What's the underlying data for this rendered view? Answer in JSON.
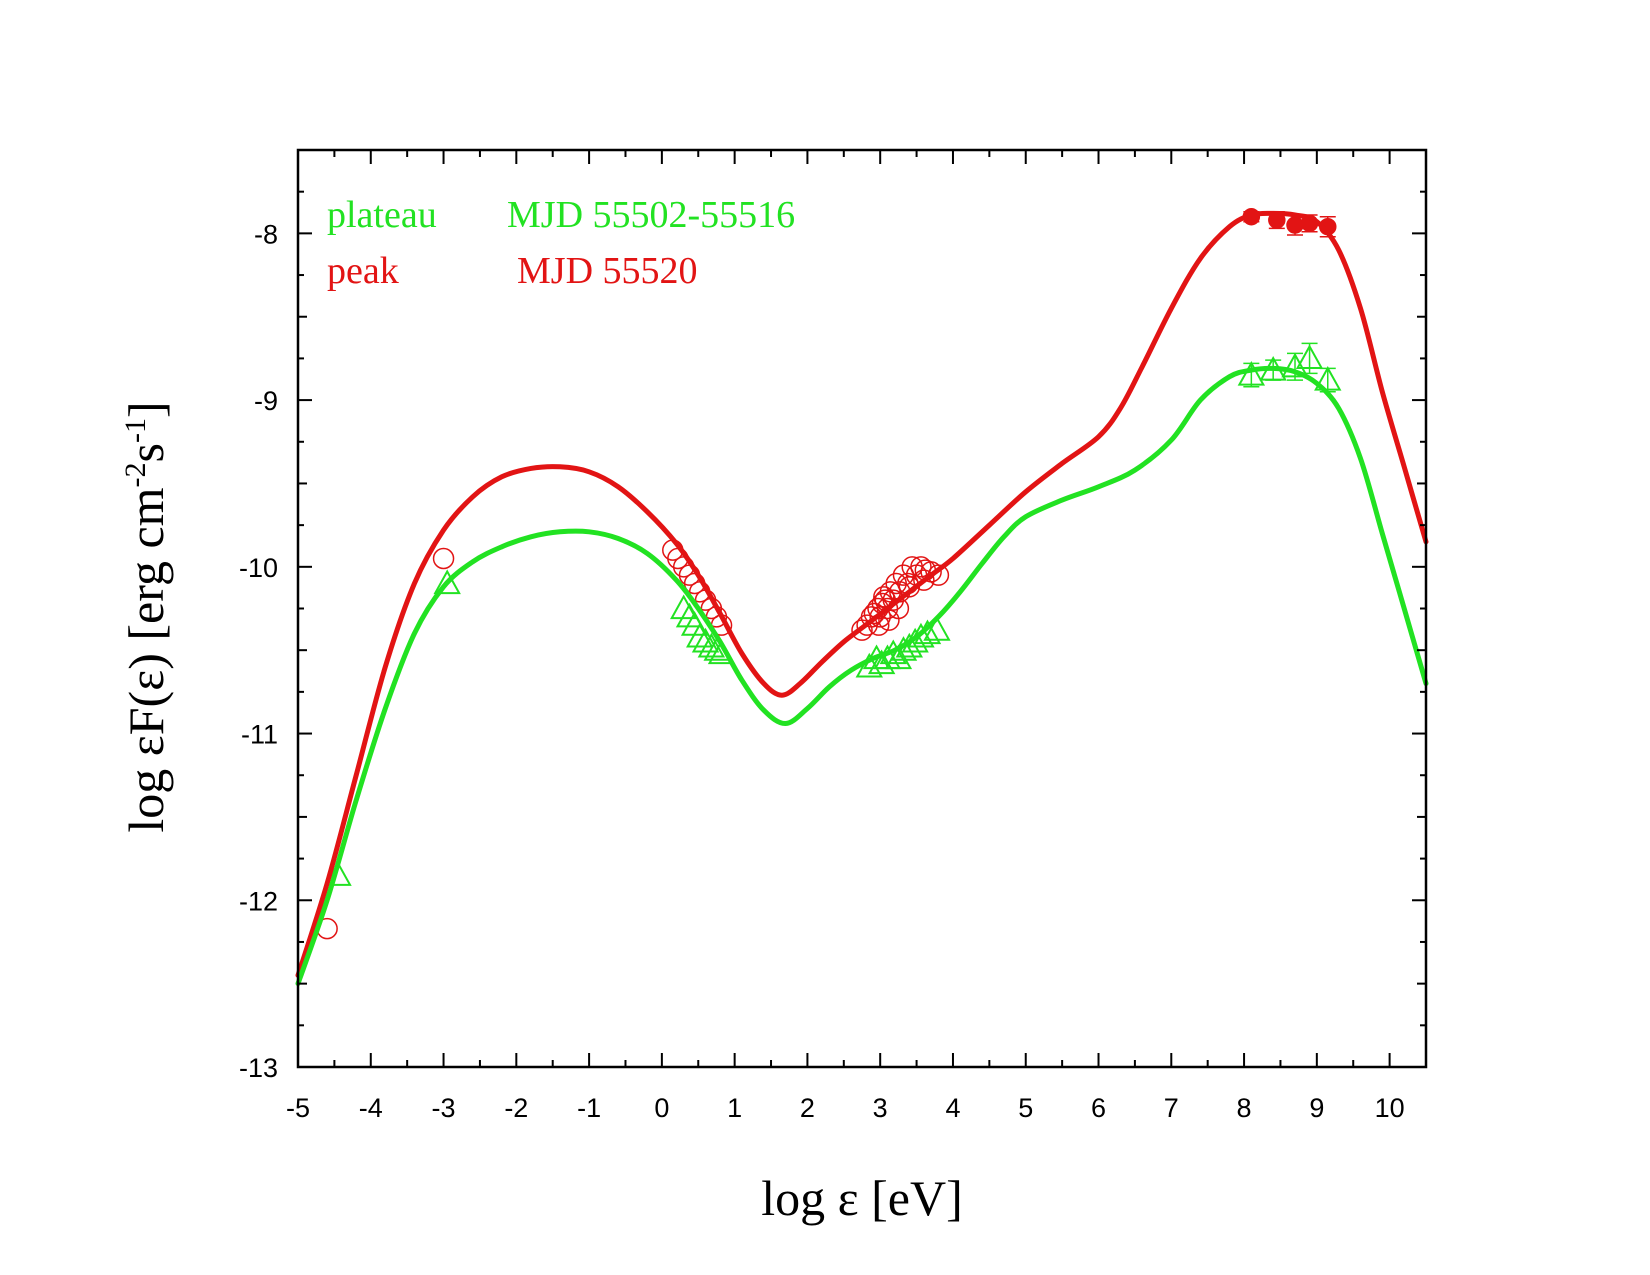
{
  "chart_data": {
    "type": "scatter",
    "xlabel": "log ε [eV]",
    "ylabel": "log εF(ε) [erg cm",
    "ylabel_exp1": "-2",
    "ylabel_mid": "s",
    "ylabel_exp2": "-1",
    "ylabel_end": "]",
    "xlim": [
      -5,
      10.5
    ],
    "ylim": [
      -13,
      -7.5
    ],
    "xticks": [
      -5,
      -4,
      -3,
      -2,
      -1,
      0,
      1,
      2,
      3,
      4,
      5,
      6,
      7,
      8,
      9,
      10
    ],
    "xtick_labels": [
      "-5",
      "-4",
      "-3",
      "-2",
      "-1",
      "0",
      "1",
      "2",
      "3",
      "4",
      "5",
      "6",
      "7",
      "8",
      "9",
      "10"
    ],
    "yticks": [
      -8,
      -9,
      -10,
      -11,
      -12,
      -13
    ],
    "ytick_labels": [
      "-8",
      "-9",
      "-10",
      "-11",
      "-12",
      "-13"
    ],
    "legend": [
      {
        "name": "plateau",
        "label": "MJD 55502-55516",
        "color": "#22e222"
      },
      {
        "name": "peak",
        "label": "MJD 55520",
        "color": "#e21414"
      }
    ],
    "colors": {
      "plateau": "#22e222",
      "peak": "#e21414",
      "axis": "#000000"
    },
    "series": [
      {
        "name": "peak-model",
        "kind": "line",
        "color": "#e21414",
        "x": [
          -5,
          -4.6,
          -4.2,
          -3.8,
          -3.4,
          -3.0,
          -2.6,
          -2.2,
          -1.8,
          -1.4,
          -1.0,
          -0.6,
          -0.2,
          0.2,
          0.5,
          0.8,
          1.1,
          1.4,
          1.65,
          1.9,
          2.2,
          2.5,
          2.8,
          3.1,
          3.4,
          3.7,
          4.0,
          4.5,
          5.0,
          5.5,
          6.0,
          6.3,
          6.6,
          7.0,
          7.4,
          7.8,
          8.1,
          8.4,
          8.7,
          9.0,
          9.3,
          9.6,
          9.9,
          10.2,
          10.5
        ],
        "y": [
          -12.45,
          -11.9,
          -11.25,
          -10.6,
          -10.1,
          -9.78,
          -9.58,
          -9.46,
          -9.41,
          -9.4,
          -9.43,
          -9.52,
          -9.67,
          -9.86,
          -10.05,
          -10.28,
          -10.52,
          -10.7,
          -10.77,
          -10.7,
          -10.57,
          -10.45,
          -10.35,
          -10.25,
          -10.15,
          -10.05,
          -9.95,
          -9.75,
          -9.55,
          -9.38,
          -9.22,
          -9.05,
          -8.8,
          -8.45,
          -8.15,
          -7.96,
          -7.89,
          -7.88,
          -7.89,
          -7.93,
          -8.1,
          -8.45,
          -8.95,
          -9.4,
          -9.85
        ]
      },
      {
        "name": "plateau-model",
        "kind": "line",
        "color": "#22e222",
        "x": [
          -5,
          -4.6,
          -4.2,
          -3.8,
          -3.4,
          -3.0,
          -2.6,
          -2.2,
          -1.8,
          -1.4,
          -1.0,
          -0.6,
          -0.2,
          0.2,
          0.5,
          0.8,
          1.1,
          1.4,
          1.7,
          2.0,
          2.3,
          2.6,
          2.9,
          3.2,
          3.5,
          3.8,
          4.1,
          4.4,
          4.7,
          5.0,
          5.5,
          6.0,
          6.5,
          7.0,
          7.4,
          7.8,
          8.1,
          8.4,
          8.7,
          9.0,
          9.3,
          9.6,
          9.9,
          10.2,
          10.5
        ],
        "y": [
          -12.5,
          -12.0,
          -11.4,
          -10.85,
          -10.4,
          -10.12,
          -9.97,
          -9.88,
          -9.82,
          -9.79,
          -9.79,
          -9.83,
          -9.92,
          -10.08,
          -10.25,
          -10.45,
          -10.68,
          -10.86,
          -10.94,
          -10.85,
          -10.72,
          -10.62,
          -10.55,
          -10.5,
          -10.42,
          -10.3,
          -10.15,
          -9.98,
          -9.82,
          -9.7,
          -9.6,
          -9.52,
          -9.42,
          -9.24,
          -9.0,
          -8.86,
          -8.82,
          -8.81,
          -8.83,
          -8.9,
          -9.05,
          -9.35,
          -9.8,
          -10.25,
          -10.7
        ]
      },
      {
        "name": "peak-data",
        "kind": "scatter",
        "marker": "open-circle",
        "color": "#e21414",
        "x": [
          -4.6,
          -3.0,
          0.15,
          0.22,
          0.3,
          0.38,
          0.45,
          0.52,
          0.6,
          0.68,
          0.75,
          0.82,
          2.75,
          2.82,
          2.88,
          2.92,
          2.97,
          3.0,
          3.03,
          3.07,
          3.1,
          3.14,
          3.18,
          3.22,
          3.27,
          3.32,
          3.38,
          3.44,
          3.5,
          3.56,
          3.62,
          3.7,
          3.8,
          2.98,
          3.12,
          3.25,
          3.05,
          3.4,
          3.6
        ],
        "y": [
          -12.17,
          -9.95,
          -9.9,
          -9.95,
          -10.0,
          -10.05,
          -10.1,
          -10.15,
          -10.2,
          -10.25,
          -10.3,
          -10.35,
          -10.38,
          -10.35,
          -10.3,
          -10.28,
          -10.25,
          -10.3,
          -10.22,
          -10.2,
          -10.25,
          -10.15,
          -10.2,
          -10.1,
          -10.15,
          -10.05,
          -10.1,
          -10.0,
          -10.05,
          -10.0,
          -10.02,
          -10.03,
          -10.05,
          -10.35,
          -10.32,
          -10.25,
          -10.18,
          -10.12,
          -10.08
        ]
      },
      {
        "name": "plateau-data",
        "kind": "scatter",
        "marker": "open-triangle",
        "color": "#22e222",
        "x": [
          -4.45,
          -2.95,
          0.3,
          0.38,
          0.45,
          0.52,
          0.6,
          0.68,
          0.76,
          0.82,
          2.85,
          2.95,
          3.02,
          3.1,
          3.18,
          3.25,
          3.32,
          3.4,
          3.48,
          3.56,
          3.65,
          3.78
        ],
        "y": [
          -11.85,
          -10.1,
          -10.25,
          -10.3,
          -10.35,
          -10.42,
          -10.45,
          -10.48,
          -10.5,
          -10.52,
          -10.6,
          -10.55,
          -10.58,
          -10.55,
          -10.52,
          -10.55,
          -10.5,
          -10.48,
          -10.45,
          -10.42,
          -10.4,
          -10.38
        ]
      },
      {
        "name": "peak-gamma",
        "kind": "scatter",
        "marker": "filled-circle",
        "color": "#e21414",
        "x": [
          8.1,
          8.45,
          8.7,
          8.9,
          9.15
        ],
        "y": [
          -7.9,
          -7.92,
          -7.95,
          -7.94,
          -7.96
        ],
        "yerr": [
          0.03,
          0.05,
          0.06,
          0.05,
          0.06
        ]
      },
      {
        "name": "plateau-gamma",
        "kind": "scatter",
        "marker": "open-triangle",
        "color": "#22e222",
        "x": [
          8.1,
          8.4,
          8.7,
          8.9,
          9.15
        ],
        "y": [
          -8.85,
          -8.82,
          -8.8,
          -8.75,
          -8.88
        ],
        "yerr": [
          0.07,
          0.06,
          0.08,
          0.09,
          0.07
        ]
      }
    ]
  }
}
